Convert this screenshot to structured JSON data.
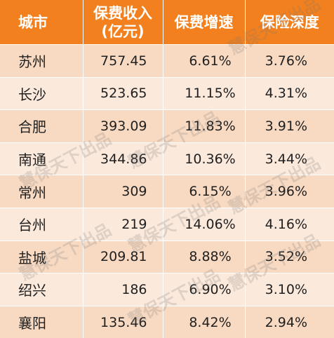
{
  "headers": {
    "city": "城市",
    "premium_line1": "保费收入",
    "premium_line2": "(亿元)",
    "growth": "保费增速",
    "depth": "保险深度"
  },
  "rows": [
    {
      "city": "苏州",
      "premium": "757.45",
      "growth": "6.61%",
      "depth": "3.76%"
    },
    {
      "city": "长沙",
      "premium": "523.65",
      "growth": "11.15%",
      "depth": "4.31%"
    },
    {
      "city": "合肥",
      "premium": "393.09",
      "growth": "11.83%",
      "depth": "3.91%"
    },
    {
      "city": "南通",
      "premium": "344.86",
      "growth": "10.36%",
      "depth": "3.44%"
    },
    {
      "city": "常州",
      "premium": "309",
      "growth": "6.15%",
      "depth": "3.96%"
    },
    {
      "city": "台州",
      "premium": "219",
      "growth": "14.06%",
      "depth": "4.16%"
    },
    {
      "city": "盐城",
      "premium": "209.81",
      "growth": "8.88%",
      "depth": "3.52%"
    },
    {
      "city": "绍兴",
      "premium": "186",
      "growth": "6.90%",
      "depth": "3.10%"
    },
    {
      "city": "襄阳",
      "premium": "135.46",
      "growth": "8.42%",
      "depth": "2.94%"
    }
  ],
  "watermark": "慧保天下出品",
  "colors": {
    "header_bg": "#f2801e",
    "row_odd": "#f8dac2",
    "row_even": "#fbe9dc"
  }
}
